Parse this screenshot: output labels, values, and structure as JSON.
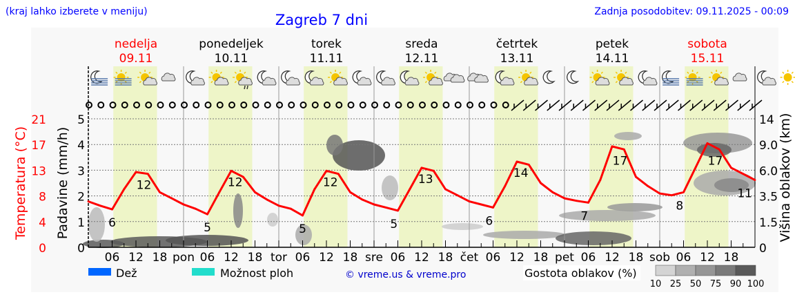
{
  "header": {
    "hint": "(kraj lahko izberete v meniju)",
    "title": "Zagreb 7 dni",
    "updated": "Zadnja posodobitev: 09.11.2025 - 00:09"
  },
  "days": [
    {
      "name": "nedelja",
      "date": "09.11",
      "color": "#ff0000",
      "short": ""
    },
    {
      "name": "ponedeljek",
      "date": "10.11",
      "color": "#000000",
      "short": "pon"
    },
    {
      "name": "torek",
      "date": "11.11",
      "color": "#000000",
      "short": "tor"
    },
    {
      "name": "sreda",
      "date": "12.11",
      "color": "#000000",
      "short": "sre"
    },
    {
      "name": "četrtek",
      "date": "13.11",
      "color": "#000000",
      "short": "čet"
    },
    {
      "name": "petek",
      "date": "14.11",
      "color": "#000000",
      "short": "pet"
    },
    {
      "name": "sobota",
      "date": "15.11",
      "color": "#ff0000",
      "short": "sob"
    }
  ],
  "hour_ticks": [
    "06",
    "12",
    "18"
  ],
  "weather_icons": [
    "moon-fog",
    "sun-fog",
    "sun-cloud",
    "cloud",
    "moon-cloud",
    "sun-cloud",
    "sun-cloud-rain",
    "moon-cloud",
    "moon-cloud",
    "moon-cloud",
    "sun-cloud",
    "moon-cloud",
    "moon-cloud",
    "moon-cloud",
    "sun-cloud",
    "clouds",
    "clouds",
    "moon-cloud",
    "sun-cloud",
    "moon",
    "moon",
    "sun-cloud",
    "sun-cloud",
    "moon-cloud",
    "moon-fog",
    "sun-fog",
    "sun-cloud",
    "cloud",
    "moon-cloud",
    "sun",
    "sun-cloud",
    "moon-cloud-rain"
  ],
  "wind": {
    "calm_symbol_count": 36,
    "barb_count": 21
  },
  "chart_data": {
    "type": "line",
    "temperature": {
      "axis_label": "Temperatura (°C)",
      "ticks": [
        0,
        4,
        8,
        13,
        17,
        21
      ],
      "ylim": [
        0,
        21
      ],
      "color": "#ff0000",
      "step_hours": 3,
      "values": [
        7.5,
        6.8,
        6.2,
        9.5,
        12.3,
        12,
        9,
        8,
        7,
        6.3,
        5.4,
        9,
        12.5,
        11.5,
        9,
        7.8,
        6.8,
        6.3,
        5.2,
        9.5,
        12.5,
        12,
        9,
        7.8,
        7,
        6.5,
        6,
        9.5,
        13,
        12.5,
        9.5,
        8.5,
        7.5,
        7,
        6.5,
        10,
        14,
        13.5,
        10.5,
        9,
        8,
        7.6,
        7.3,
        11,
        16.5,
        16,
        11.5,
        10,
        8.8,
        8.5,
        9,
        13,
        17,
        16,
        13,
        12,
        11
      ],
      "labels": [
        {
          "day": 0,
          "hour": 6,
          "text": "6",
          "pos": "min"
        },
        {
          "day": 0,
          "hour": 14,
          "text": "12",
          "pos": "max"
        },
        {
          "day": 1,
          "hour": 6,
          "text": "5",
          "pos": "min"
        },
        {
          "day": 1,
          "hour": 13,
          "text": "12",
          "pos": "max"
        },
        {
          "day": 2,
          "hour": 6,
          "text": "5",
          "pos": "min"
        },
        {
          "day": 2,
          "hour": 13,
          "text": "12",
          "pos": "max"
        },
        {
          "day": 3,
          "hour": 5,
          "text": "5",
          "pos": "min"
        },
        {
          "day": 3,
          "hour": 13,
          "text": "13",
          "pos": "max"
        },
        {
          "day": 4,
          "hour": 5,
          "text": "6",
          "pos": "min"
        },
        {
          "day": 4,
          "hour": 13,
          "text": "14",
          "pos": "max"
        },
        {
          "day": 5,
          "hour": 5,
          "text": "7",
          "pos": "min"
        },
        {
          "day": 5,
          "hour": 14,
          "text": "17",
          "pos": "max"
        },
        {
          "day": 6,
          "hour": 5,
          "text": "8",
          "pos": "min"
        },
        {
          "day": 6,
          "hour": 14,
          "text": "17",
          "pos": "max"
        },
        {
          "day": 6,
          "hour": 23,
          "text": "11",
          "pos": "end"
        }
      ]
    },
    "precipitation": {
      "axis_label": "Padavine (mm/h)",
      "ticks": [
        0,
        1,
        2,
        3,
        4,
        5
      ],
      "ylim": [
        0,
        5
      ]
    },
    "cloud_height": {
      "axis_label": "Višina oblakov (km)",
      "ticks": [
        "0",
        "1.5",
        "3.5",
        "6.0",
        "9.0",
        "14"
      ]
    },
    "grid": true
  },
  "legend": {
    "rain": {
      "label": "Dež",
      "color": "#0066ff"
    },
    "showers": {
      "label": "Možnost ploh",
      "color": "#22ddcc"
    },
    "copyright": "© vreme.us & vreme.pro",
    "cloud_density": {
      "label": "Gostota oblakov (%)",
      "ticks": [
        "10",
        "25",
        "50",
        "75",
        "90",
        "100"
      ],
      "colors": [
        "#d4d4d4",
        "#b0b0b0",
        "#969696",
        "#7a7a7a",
        "#5a5a5a"
      ]
    }
  }
}
